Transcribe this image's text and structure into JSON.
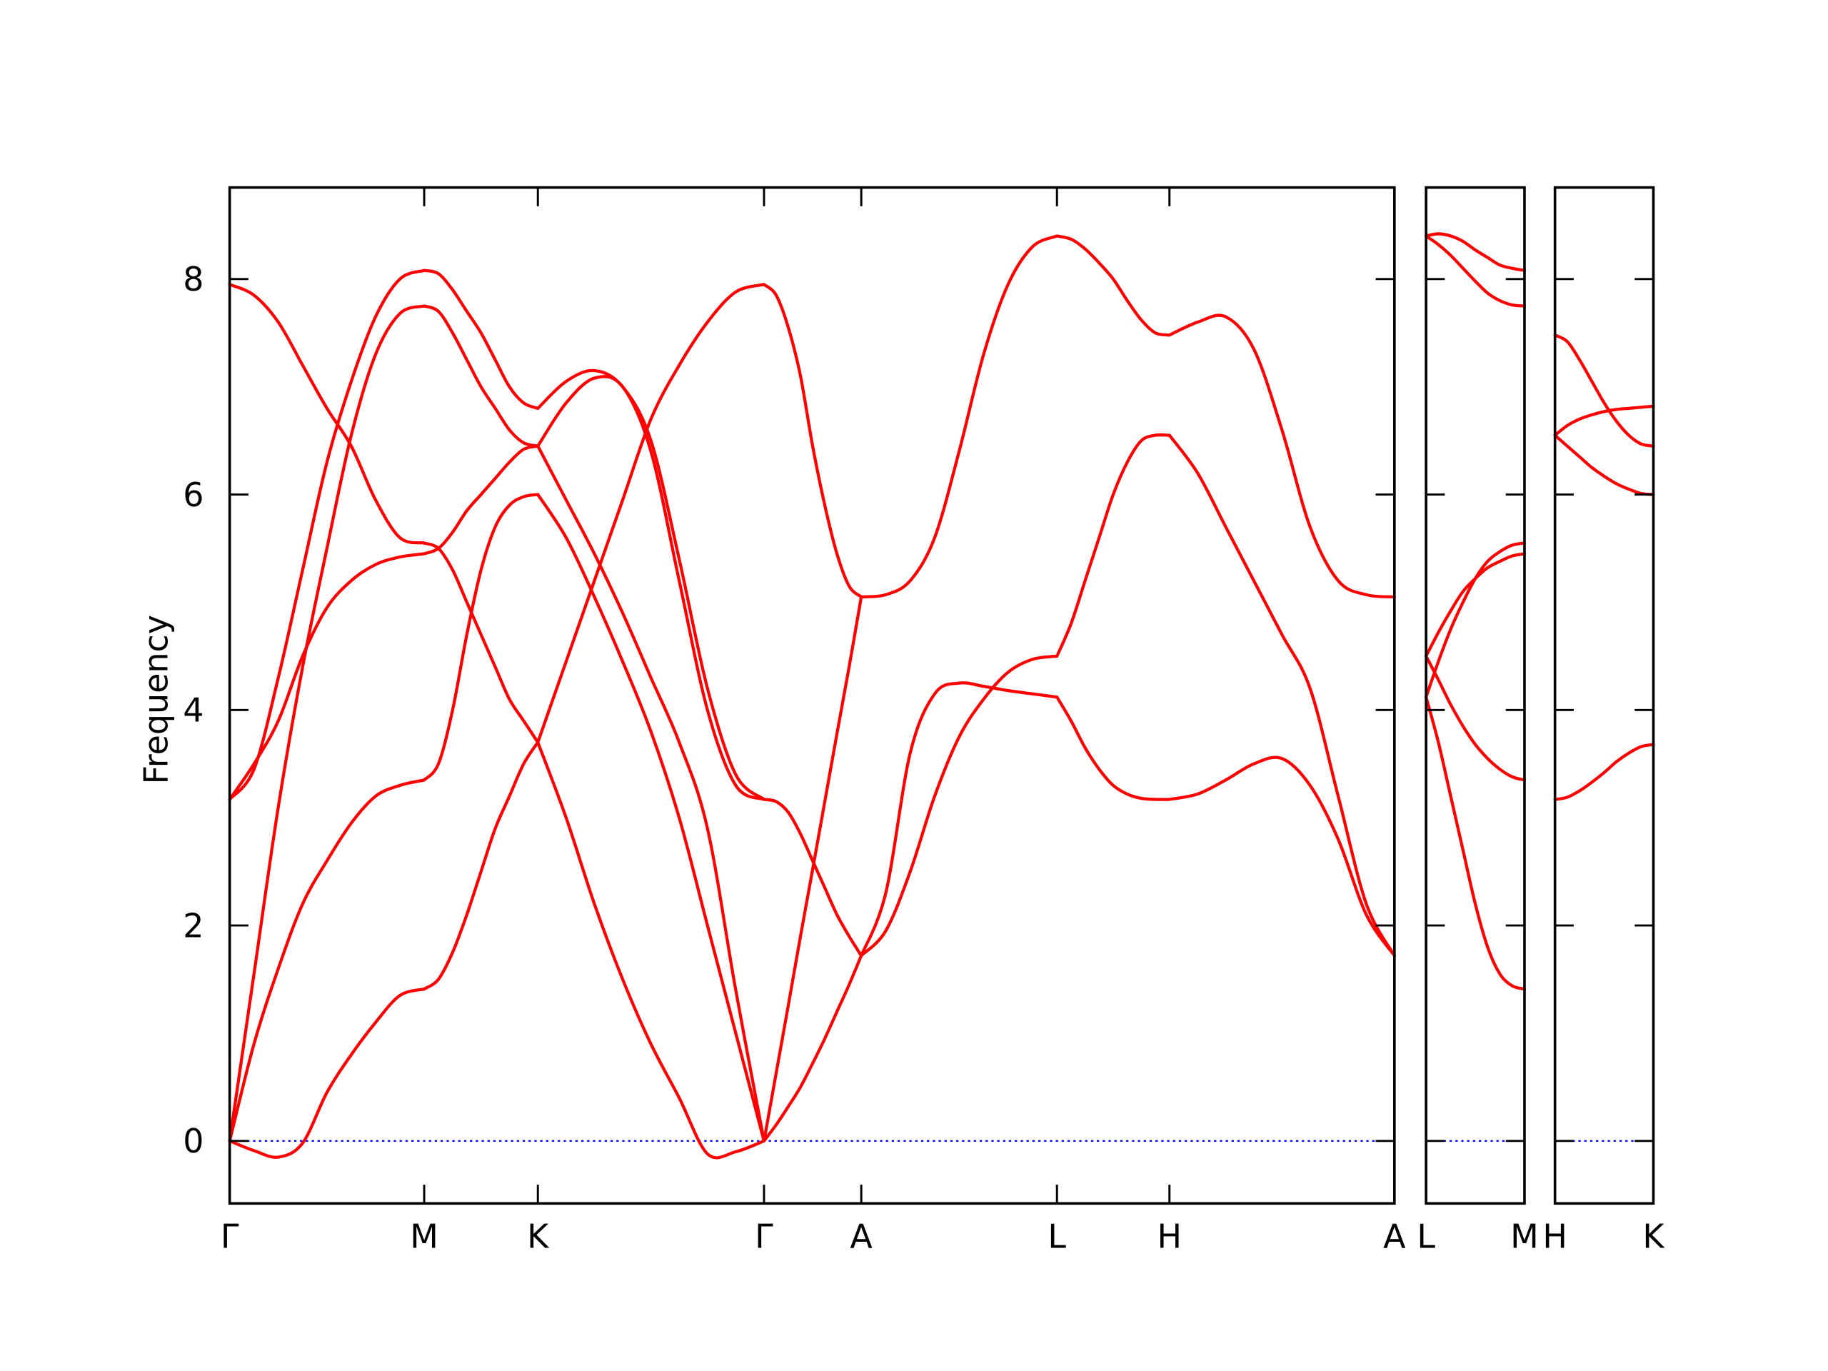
{
  "chart_data": {
    "type": "line",
    "title": "",
    "xlabel": "",
    "ylabel": "Frequency",
    "ylim": [
      -0.58,
      8.85
    ],
    "yticks": [
      0,
      2,
      4,
      6,
      8
    ],
    "grid": false,
    "band_color": "#ff0000",
    "zero_line_color": "#0000ff",
    "zero_line_style": "dotted",
    "sampling": "each band is sampled at 9 evenly spaced points along its path segment",
    "panels": [
      {
        "segments": [
          {
            "from": "Γ",
            "to": "M",
            "bands": [
              [
                0,
                -0.09,
                -0.15,
                -0.02,
                0.45,
                0.8,
                1.1,
                1.35,
                1.41
              ],
              [
                0,
                0.9,
                1.6,
                2.2,
                2.6,
                2.95,
                3.2,
                3.3,
                3.35
              ],
              [
                0,
                1.55,
                3.1,
                4.4,
                5.5,
                6.55,
                7.3,
                7.68,
                7.75
              ],
              [
                3.17,
                3.5,
                3.9,
                4.5,
                4.95,
                5.2,
                5.35,
                5.42,
                5.45
              ],
              [
                3.17,
                3.45,
                4.3,
                5.3,
                6.3,
                7.05,
                7.65,
                8.0,
                8.08
              ],
              [
                7.95,
                7.85,
                7.6,
                7.2,
                6.8,
                6.45,
                5.95,
                5.6,
                5.55
              ]
            ]
          },
          {
            "from": "M",
            "to": "K",
            "bands": [
              [
                1.41,
                1.5,
                1.75,
                2.1,
                2.5,
                2.9,
                3.2,
                3.5,
                3.7
              ],
              [
                3.35,
                3.5,
                4.0,
                4.7,
                5.3,
                5.7,
                5.9,
                5.98,
                6.0
              ],
              [
                7.75,
                7.7,
                7.5,
                7.25,
                7.0,
                6.8,
                6.6,
                6.48,
                6.45
              ],
              [
                5.45,
                5.5,
                5.65,
                5.85,
                6.0,
                6.15,
                6.3,
                6.42,
                6.45
              ],
              [
                8.08,
                8.05,
                7.9,
                7.7,
                7.5,
                7.25,
                7.0,
                6.85,
                6.8
              ],
              [
                5.55,
                5.5,
                5.3,
                5.0,
                4.7,
                4.4,
                4.1,
                3.9,
                3.7
              ]
            ]
          },
          {
            "from": "K",
            "to": "Γ",
            "bands": [
              [
                3.7,
                4.45,
                5.2,
                5.95,
                6.7,
                7.2,
                7.6,
                7.88,
                7.95
              ],
              [
                3.7,
                3.0,
                2.2,
                1.5,
                0.9,
                0.4,
                -0.12,
                -0.1,
                0
              ],
              [
                6.0,
                5.6,
                5.05,
                4.45,
                3.8,
                3.0,
                2.0,
                1.0,
                0
              ],
              [
                6.45,
                5.95,
                5.45,
                4.9,
                4.3,
                3.7,
                2.9,
                1.4,
                0
              ],
              [
                6.8,
                7.05,
                7.15,
                7.0,
                6.5,
                5.4,
                4.2,
                3.4,
                3.17
              ],
              [
                6.45,
                6.85,
                7.08,
                7.0,
                6.4,
                5.2,
                4.0,
                3.3,
                3.17
              ]
            ]
          },
          {
            "from": "Γ",
            "to": "A",
            "bands": [
              [
                0,
                0.63,
                1.26,
                1.9,
                2.52,
                3.15,
                3.78,
                4.4,
                5.05
              ],
              [
                0,
                0.15,
                0.32,
                0.5,
                0.72,
                0.95,
                1.2,
                1.45,
                1.72
              ],
              [
                3.17,
                3.15,
                3.05,
                2.85,
                2.6,
                2.35,
                2.1,
                1.9,
                1.72
              ],
              [
                7.95,
                7.85,
                7.55,
                7.1,
                6.45,
                5.9,
                5.45,
                5.15,
                5.05
              ]
            ]
          },
          {
            "from": "A",
            "to": "L",
            "bands": [
              [
                5.05,
                5.07,
                5.2,
                5.6,
                6.4,
                7.3,
                7.95,
                8.3,
                8.4
              ],
              [
                1.72,
                2.3,
                3.6,
                4.15,
                4.25,
                4.22,
                4.18,
                4.15,
                4.12
              ],
              [
                1.72,
                1.95,
                2.5,
                3.2,
                3.75,
                4.1,
                4.35,
                4.47,
                4.5
              ]
            ]
          },
          {
            "from": "L",
            "to": "H",
            "bands": [
              [
                8.4,
                8.37,
                8.28,
                8.15,
                8.0,
                7.8,
                7.62,
                7.5,
                7.48
              ],
              [
                4.5,
                4.8,
                5.2,
                5.6,
                6.0,
                6.3,
                6.5,
                6.55,
                6.55
              ],
              [
                4.12,
                3.9,
                3.65,
                3.45,
                3.3,
                3.22,
                3.18,
                3.17,
                3.17
              ]
            ]
          },
          {
            "from": "H",
            "to": "A",
            "bands": [
              [
                7.48,
                7.6,
                7.65,
                7.35,
                6.6,
                5.7,
                5.2,
                5.07,
                5.05
              ],
              [
                6.55,
                6.2,
                5.7,
                5.2,
                4.7,
                4.2,
                3.2,
                2.2,
                1.72
              ],
              [
                3.17,
                3.22,
                3.35,
                3.5,
                3.55,
                3.3,
                2.8,
                2.1,
                1.72
              ]
            ]
          }
        ]
      },
      {
        "segments": [
          {
            "from": "L",
            "to": "M",
            "bands": [
              [
                8.4,
                8.42,
                8.4,
                8.35,
                8.27,
                8.2,
                8.13,
                8.1,
                8.08
              ],
              [
                8.4,
                8.32,
                8.22,
                8.1,
                7.98,
                7.87,
                7.8,
                7.76,
                7.75
              ],
              [
                4.5,
                4.72,
                4.92,
                5.1,
                5.22,
                5.32,
                5.38,
                5.43,
                5.45
              ],
              [
                4.12,
                4.45,
                4.75,
                5.0,
                5.22,
                5.38,
                5.47,
                5.53,
                5.55
              ],
              [
                4.5,
                4.28,
                4.05,
                3.85,
                3.68,
                3.55,
                3.45,
                3.38,
                3.35
              ],
              [
                4.12,
                3.7,
                3.2,
                2.7,
                2.2,
                1.8,
                1.55,
                1.44,
                1.41
              ]
            ]
          }
        ]
      },
      {
        "segments": [
          {
            "from": "H",
            "to": "K",
            "bands": [
              [
                7.48,
                7.42,
                7.25,
                7.05,
                6.85,
                6.68,
                6.55,
                6.47,
                6.45
              ],
              [
                6.55,
                6.64,
                6.7,
                6.74,
                6.77,
                6.79,
                6.8,
                6.81,
                6.82
              ],
              [
                6.55,
                6.45,
                6.35,
                6.25,
                6.17,
                6.1,
                6.05,
                6.01,
                6.0
              ],
              [
                3.17,
                3.19,
                3.25,
                3.33,
                3.42,
                3.52,
                3.6,
                3.66,
                3.68
              ]
            ]
          }
        ]
      }
    ]
  }
}
